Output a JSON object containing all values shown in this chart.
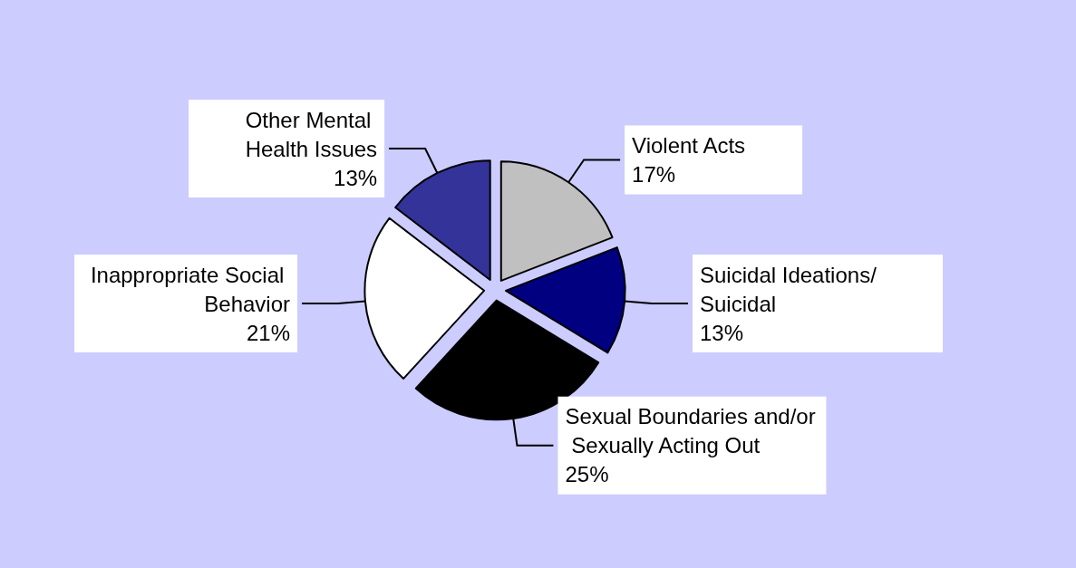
{
  "chart_data": {
    "type": "pie",
    "categories": [
      "Violent Acts",
      "Suicidal Ideations/Suicidal",
      "Sexual Boundaries and/or Sexually Acting Out",
      "Inappropriate Social Behavior",
      "Other Mental Health Issues"
    ],
    "values": [
      17,
      13,
      25,
      21,
      13
    ],
    "value_labels": [
      "17%",
      "13%",
      "25%",
      "21%",
      "13%"
    ],
    "colors": [
      "#c0c0c0",
      "#000080",
      "#000000",
      "#ffffff",
      "#333399"
    ],
    "legend": false
  }
}
